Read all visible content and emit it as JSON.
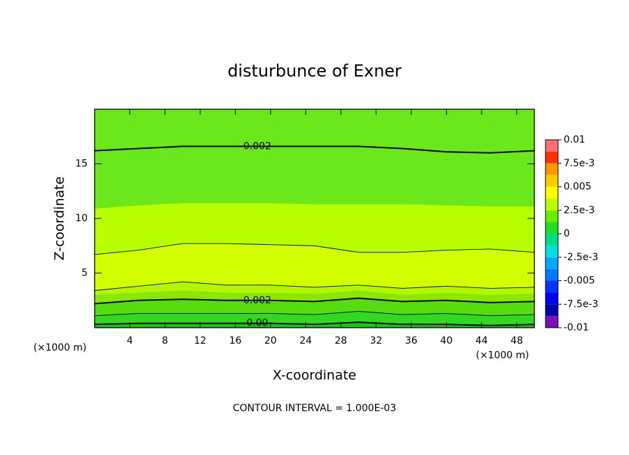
{
  "chart_data": {
    "type": "contour",
    "title": "disturbunce of Exner",
    "x_label": "X-coordinate",
    "y_label": "Z-coordinate",
    "x_unit_labels": [
      "(×1000 m)",
      "(×1000 m)"
    ],
    "footer": "CONTOUR INTERVAL = 1.000E-03",
    "xlim": [
      0,
      50
    ],
    "ylim": [
      0,
      20
    ],
    "xticks": [
      4,
      8,
      12,
      16,
      20,
      24,
      28,
      32,
      36,
      40,
      44,
      48
    ],
    "yticks": [
      5,
      10,
      15
    ],
    "x": [
      0,
      5,
      10,
      15,
      20,
      25,
      30,
      35,
      40,
      45,
      50
    ],
    "background": "#6be81c",
    "regions": [
      {
        "color": "#b8ff00",
        "z": [
          10.9,
          11.2,
          11.4,
          11.4,
          11.4,
          11.3,
          11.3,
          11.3,
          11.2,
          11.1,
          11.1
        ]
      },
      {
        "color": "#d2ff00",
        "z": [
          6.7,
          7.1,
          7.7,
          7.7,
          7.6,
          7.5,
          6.9,
          6.9,
          7.1,
          7.2,
          6.9
        ]
      },
      {
        "color": "#b4f500",
        "z": [
          3.4,
          3.8,
          4.2,
          3.9,
          3.9,
          3.7,
          3.9,
          3.6,
          3.8,
          3.6,
          3.7
        ]
      },
      {
        "color": "#8ae800",
        "z": [
          3.0,
          3.2,
          3.4,
          3.2,
          3.2,
          3.1,
          3.4,
          3.0,
          3.2,
          3.0,
          3.1
        ]
      },
      {
        "color": "#55dd10",
        "z": [
          2.2,
          2.5,
          2.6,
          2.5,
          2.5,
          2.4,
          2.7,
          2.4,
          2.5,
          2.3,
          2.4
        ]
      },
      {
        "color": "#33d820",
        "z": [
          1.1,
          1.3,
          1.3,
          1.3,
          1.3,
          1.2,
          1.5,
          1.2,
          1.3,
          1.1,
          1.2
        ]
      },
      {
        "color": "#10cc10",
        "z": [
          0.3,
          0.4,
          0.4,
          0.4,
          0.4,
          0.3,
          0.5,
          0.3,
          0.3,
          0.2,
          0.3
        ]
      }
    ],
    "contour_lines": [
      {
        "level": 0.002,
        "bold": true,
        "z": [
          16.2,
          16.4,
          16.6,
          16.6,
          16.6,
          16.6,
          16.6,
          16.4,
          16.1,
          16.0,
          16.2
        ]
      },
      {
        "level": 0.003,
        "bold": false,
        "z": [
          6.7,
          7.1,
          7.7,
          7.7,
          7.6,
          7.5,
          6.9,
          6.9,
          7.1,
          7.2,
          6.9
        ]
      },
      {
        "level": 0.003,
        "bold": false,
        "z": [
          3.4,
          3.8,
          4.2,
          3.9,
          3.9,
          3.7,
          3.9,
          3.6,
          3.8,
          3.6,
          3.7
        ]
      },
      {
        "level": 0.002,
        "bold": true,
        "z": [
          2.2,
          2.5,
          2.6,
          2.5,
          2.5,
          2.4,
          2.7,
          2.4,
          2.5,
          2.3,
          2.4
        ]
      },
      {
        "level": 0.001,
        "bold": false,
        "z": [
          1.1,
          1.3,
          1.3,
          1.3,
          1.3,
          1.2,
          1.5,
          1.2,
          1.3,
          1.1,
          1.2
        ]
      },
      {
        "level": 0,
        "label": "0.00",
        "bold": true,
        "z": [
          0.3,
          0.4,
          0.4,
          0.4,
          0.4,
          0.3,
          0.5,
          0.3,
          0.3,
          0.2,
          0.3
        ]
      }
    ],
    "colorbar": {
      "levels": [
        -0.01,
        -0.00875,
        -0.0075,
        -0.00625,
        -0.005,
        -0.00375,
        -0.0025,
        -0.00125,
        0,
        0.00125,
        0.0025,
        0.00375,
        0.005,
        0.00625,
        0.0075,
        0.00875,
        0.01
      ],
      "colors": [
        "#7a10b8",
        "#0000a8",
        "#0000f0",
        "#0033ff",
        "#0077ff",
        "#00aaff",
        "#00e0e0",
        "#00dd88",
        "#22dd22",
        "#66ee00",
        "#bbff00",
        "#ffff00",
        "#ffcc00",
        "#ff9900",
        "#ff3300",
        "#ff7070"
      ],
      "ticks": [
        -0.01,
        {
          "value": -0.0075,
          "label": "-7.5e-3"
        },
        -0.005,
        {
          "value": -0.0025,
          "label": "-2.5e-3"
        },
        0,
        {
          "value": 0.0025,
          "label": "2.5e-3"
        },
        0.005,
        {
          "value": 0.0075,
          "label": "7.5e-3"
        },
        0.01
      ]
    }
  }
}
